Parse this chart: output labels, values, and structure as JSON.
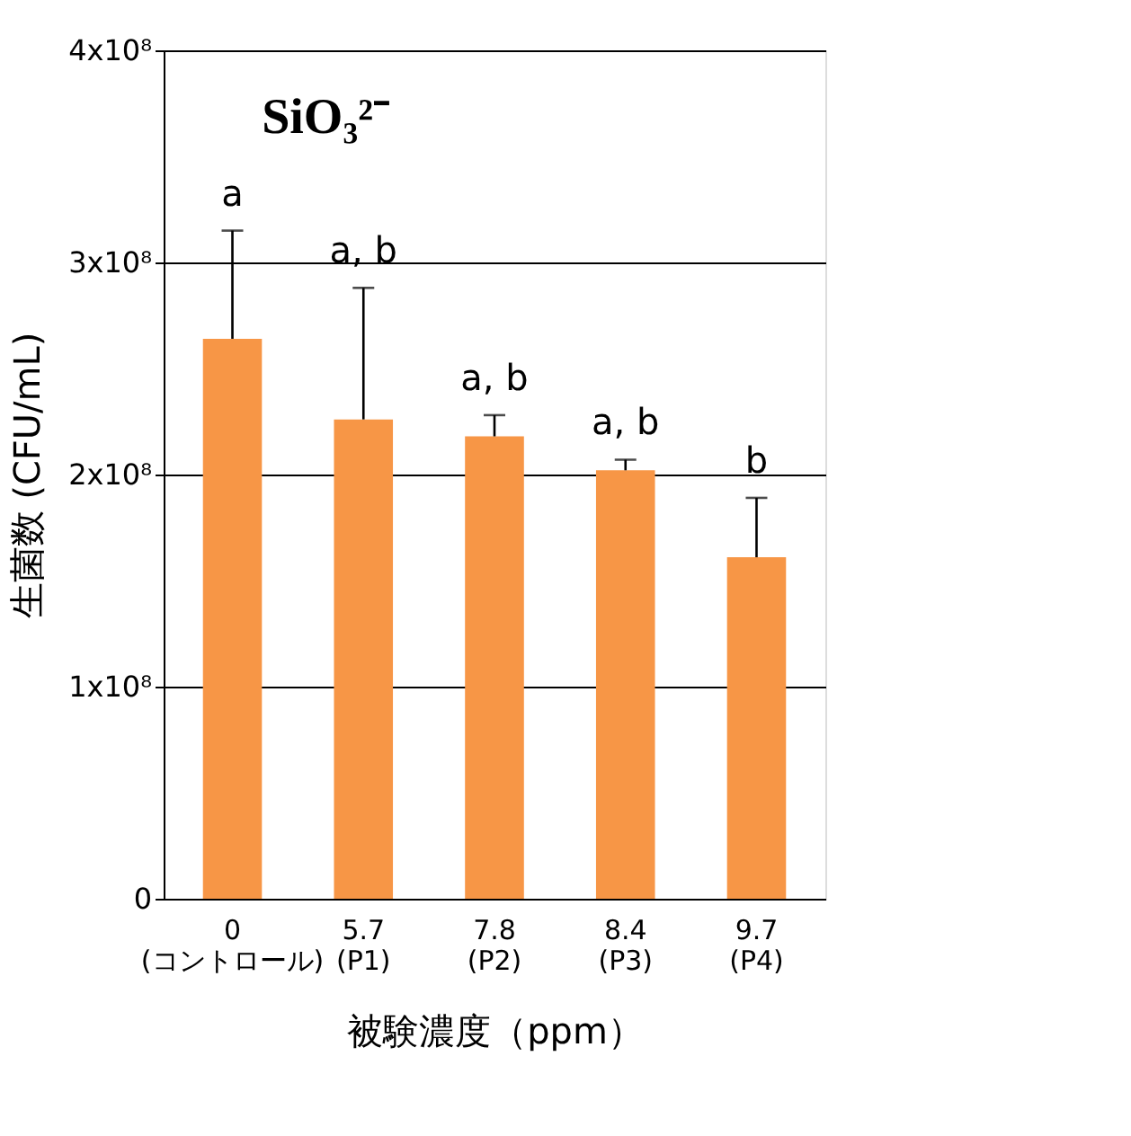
{
  "chart_data": {
    "type": "bar",
    "title": "SiO₃²⁻",
    "xlabel": "被験濃度（ppm）",
    "ylabel": "生菌数 (CFU/mL)",
    "categories": [
      "0\n(コントロール)",
      "5.7\n(P1)",
      "7.8\n(P2)",
      "8.4\n(P3)",
      "9.7\n(P4)"
    ],
    "values": [
      264000000,
      226000000,
      218000000,
      202000000,
      161000000
    ],
    "errors": [
      [
        264000000,
        315000000
      ],
      [
        226000000,
        288000000
      ],
      [
        218000000,
        228000000
      ],
      [
        202000000,
        207000000
      ],
      [
        161000000,
        189000000
      ]
    ],
    "color": "#f79646",
    "ylim": [
      0,
      400000000
    ],
    "yticks": [
      0,
      {
        "value": 100000000,
        "label": "1x10⁸"
      },
      {
        "value": 200000000,
        "label": "2x10⁸"
      },
      {
        "value": 300000000,
        "label": "3x10⁸"
      },
      {
        "value": 400000000,
        "label": "4x10⁸"
      }
    ],
    "grid": "y",
    "annotations": [
      {
        "text": "a",
        "x": "0\n(コントロール)",
        "y": 315000000
      },
      {
        "text": "a, b",
        "x": "5.7\n(P1)",
        "y": 288000000
      },
      {
        "text": "a, b",
        "x": "7.8\n(P2)",
        "y": 228000000
      },
      {
        "text": "a, b",
        "x": "8.4\n(P3)",
        "y": 207000000
      },
      {
        "text": "b",
        "x": "9.7\n(P4)",
        "y": 189000000
      }
    ]
  }
}
